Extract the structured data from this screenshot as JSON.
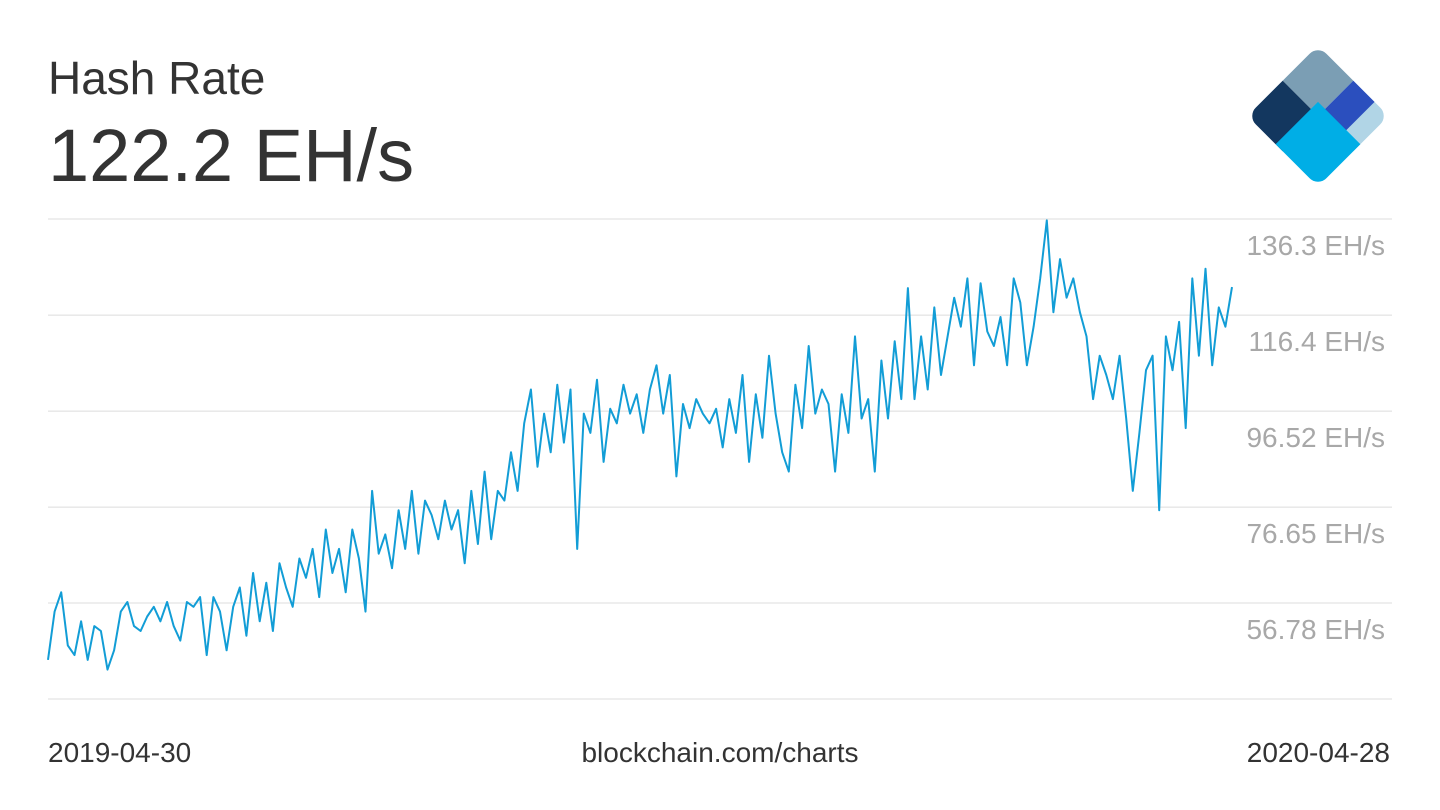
{
  "chart_data": {
    "type": "line",
    "title": "Hash Rate",
    "subtitle": "122.2 EH/s",
    "source": "blockchain.com/charts",
    "xlim": [
      "2019-04-30",
      "2020-04-28"
    ],
    "color": "#129dd6",
    "grid": true,
    "ylim": [
      36.91,
      136.3
    ],
    "yticks": [
      {
        "value": 136.3,
        "label": "136.3 EH/s"
      },
      {
        "value": 116.4,
        "label": "116.4 EH/s"
      },
      {
        "value": 96.52,
        "label": "96.52 EH/s"
      },
      {
        "value": 76.65,
        "label": "76.65 EH/s"
      },
      {
        "value": 56.78,
        "label": "56.78 EH/s"
      }
    ],
    "values": [
      45,
      55,
      59,
      48,
      46,
      53,
      45,
      52,
      51,
      43,
      47,
      55,
      57,
      52,
      51,
      54,
      56,
      53,
      57,
      52,
      49,
      57,
      56,
      58,
      46,
      58,
      55,
      47,
      56,
      60,
      50,
      63,
      53,
      61,
      51,
      65,
      60,
      56,
      66,
      62,
      68,
      58,
      72,
      63,
      68,
      59,
      72,
      66,
      55,
      80,
      67,
      71,
      64,
      76,
      68,
      80,
      67,
      78,
      75,
      70,
      78,
      72,
      76,
      65,
      80,
      69,
      84,
      70,
      80,
      78,
      88,
      80,
      94,
      101,
      85,
      96,
      88,
      102,
      90,
      101,
      68,
      96,
      92,
      103,
      86,
      97,
      94,
      102,
      96,
      100,
      92,
      101,
      106,
      96,
      104,
      83,
      98,
      93,
      99,
      96,
      94,
      97,
      89,
      99,
      92,
      104,
      86,
      100,
      91,
      108,
      96,
      88,
      84,
      102,
      93,
      110,
      96,
      101,
      98,
      84,
      100,
      92,
      112,
      95,
      99,
      84,
      107,
      95,
      111,
      99,
      122,
      99,
      112,
      101,
      118,
      104,
      112,
      120,
      114,
      124,
      106,
      123,
      113,
      110,
      116,
      106,
      124,
      119,
      106,
      114,
      124,
      136,
      117,
      128,
      120,
      124,
      117,
      112,
      99,
      108,
      104,
      99,
      108,
      95,
      80,
      92,
      105,
      108,
      76,
      112,
      105,
      115,
      93,
      124,
      108,
      126,
      106,
      118,
      114,
      122.2
    ]
  }
}
